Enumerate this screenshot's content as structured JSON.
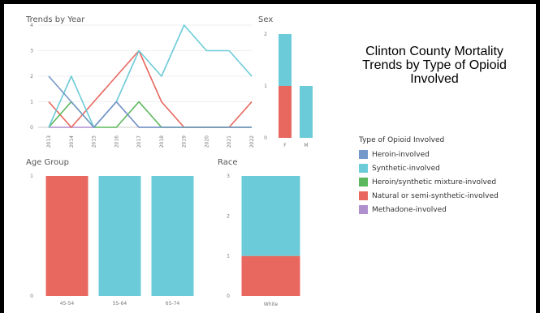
{
  "title_lines": [
    "Clinton County Mortality",
    "Trends by Type of Opioid",
    "Involved"
  ],
  "legend": {
    "title": "Type of Opioid Involved",
    "items": [
      {
        "label": "Heroin-involved",
        "color": "#7498c9"
      },
      {
        "label": "Synthetic-involved",
        "color": "#6ccbd8"
      },
      {
        "label": "Heroin/synthetic mixture-involved",
        "color": "#5cb85c"
      },
      {
        "label": "Natural or semi-synthetic-involved",
        "color": "#e8675f"
      },
      {
        "label": "Methadone-involved",
        "color": "#b08fcf"
      }
    ]
  },
  "chart_data": [
    {
      "type": "line",
      "title": "Trends by Year",
      "x": [
        "2013",
        "2014",
        "2015",
        "2016",
        "2017",
        "2018",
        "2019",
        "2020",
        "2021",
        "2022"
      ],
      "ylim": [
        0,
        4
      ],
      "yticks": [
        0,
        1,
        2,
        3,
        4
      ],
      "series": [
        {
          "name": "Heroin-involved",
          "color": "#7498c9",
          "values": [
            2,
            1,
            0,
            1,
            0,
            0,
            0,
            0,
            0,
            0
          ]
        },
        {
          "name": "Synthetic-involved",
          "color": "#6ccbd8",
          "values": [
            0,
            2,
            0,
            1,
            3,
            2,
            4,
            3,
            3,
            2
          ]
        },
        {
          "name": "Heroin/synthetic mixture-involved",
          "color": "#5cb85c",
          "values": [
            0,
            1,
            0,
            0,
            1,
            0,
            0,
            0,
            0,
            0
          ]
        },
        {
          "name": "Natural or semi-synthetic-involved",
          "color": "#e8675f",
          "values": [
            1,
            0,
            1,
            2,
            3,
            1,
            0,
            0,
            0,
            1
          ]
        },
        {
          "name": "Methadone-involved",
          "color": "#b08fcf",
          "values": [
            0,
            0,
            0,
            1,
            0,
            0,
            0,
            0,
            0,
            0
          ]
        }
      ]
    },
    {
      "type": "bar",
      "stacked": true,
      "title": "Sex",
      "categories": [
        "F",
        "M"
      ],
      "ylim": [
        0,
        2
      ],
      "yticks": [
        0,
        1,
        2
      ],
      "series": [
        {
          "name": "Natural or semi-synthetic-involved",
          "color": "#e8675f",
          "values": [
            1,
            0
          ]
        },
        {
          "name": "Synthetic-involved",
          "color": "#6ccbd8",
          "values": [
            1,
            1
          ]
        }
      ]
    },
    {
      "type": "bar",
      "stacked": true,
      "title": "Age Group",
      "categories": [
        "45-54",
        "55-64",
        "65-74"
      ],
      "ylim": [
        0,
        1
      ],
      "yticks": [
        0,
        1
      ],
      "series": [
        {
          "name": "Natural or semi-synthetic-involved",
          "color": "#e8675f",
          "values": [
            1,
            0,
            0
          ]
        },
        {
          "name": "Synthetic-involved",
          "color": "#6ccbd8",
          "values": [
            0,
            1,
            1
          ]
        }
      ]
    },
    {
      "type": "bar",
      "stacked": true,
      "title": "Race",
      "categories": [
        "White"
      ],
      "ylim": [
        0,
        3
      ],
      "yticks": [
        0,
        1,
        2,
        3
      ],
      "series": [
        {
          "name": "Natural or semi-synthetic-involved",
          "color": "#e8675f",
          "values": [
            1
          ]
        },
        {
          "name": "Synthetic-involved",
          "color": "#6ccbd8",
          "values": [
            2
          ]
        }
      ]
    }
  ]
}
